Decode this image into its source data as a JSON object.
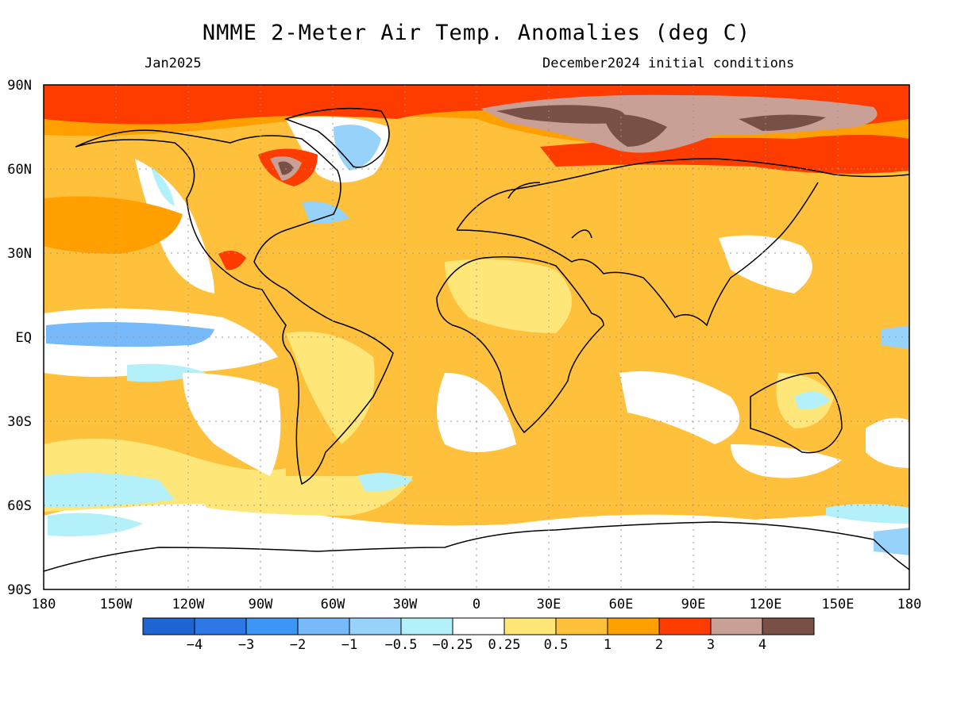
{
  "header": {
    "title": "NMME 2-Meter Air Temp. Anomalies (deg C)",
    "valid_month": "Jan2025",
    "initial_conditions": "December2024 initial conditions"
  },
  "map": {
    "lat_labels": [
      "90N",
      "60N",
      "30N",
      "EQ",
      "30S",
      "60S",
      "90S"
    ],
    "lon_labels": [
      "180",
      "150W",
      "120W",
      "90W",
      "60W",
      "30W",
      "0",
      "30E",
      "60E",
      "90E",
      "120E",
      "150E",
      "180"
    ],
    "colors": {
      "le_-4": "#1e64d2",
      "-4_-3": "#2d78e6",
      "-3_-2": "#3c96f5",
      "-2_-1": "#78b9fa",
      "-1_-0.5": "#96d2fa",
      "-0.5_-0.25": "#b4f0fa",
      "-0.25_0.25": "#ffffff",
      "0.25_0.5": "#ffe678",
      "0.5_1": "#ffc03c",
      "1_2": "#ffa000",
      "2_3": "#ff3c00",
      "3_4": "#c8a096",
      "ge_4": "#785046"
    }
  },
  "colorbar": {
    "labels": [
      "-4",
      "-3",
      "-2",
      "-1",
      "-0.5",
      "-0.25",
      "0.25",
      "0.5",
      "1",
      "2",
      "3",
      "4"
    ],
    "bins": [
      "#1e64d2",
      "#2d78e6",
      "#3c96f5",
      "#78b9fa",
      "#96d2fa",
      "#b4f0fa",
      "#ffffff",
      "#ffe678",
      "#ffc03c",
      "#ffa000",
      "#ff3c00",
      "#c8a096",
      "#785046"
    ]
  }
}
